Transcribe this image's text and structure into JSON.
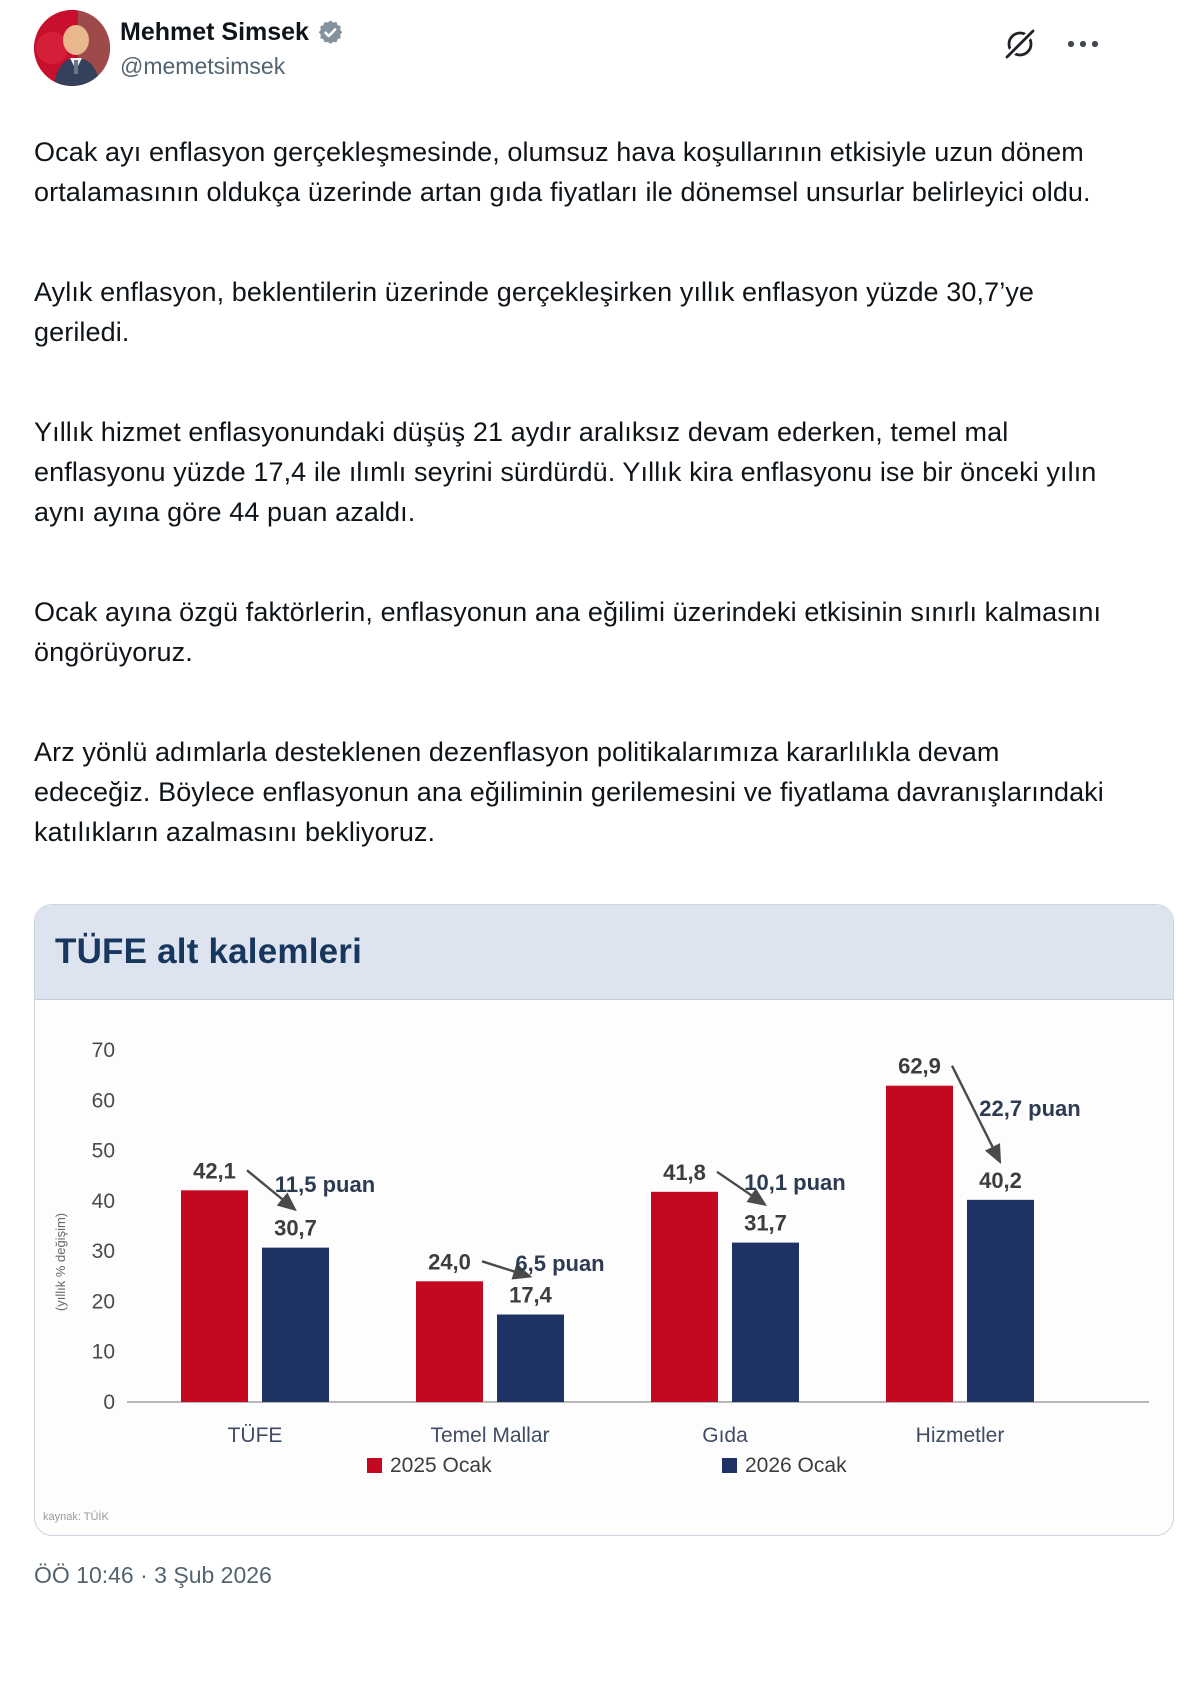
{
  "user": {
    "name": "Mehmet Simsek",
    "handle": "@memetsimsek",
    "badge": "verified-gray"
  },
  "tweet": {
    "paragraphs": [
      "Ocak ayı enflasyon gerçekleşmesinde, olumsuz hava koşullarının etkisiyle uzun dönem ortalamasının oldukça üzerinde artan gıda fiyatları ile dönemsel unsurlar belirleyici oldu.",
      "Aylık enflasyon, beklentilerin üzerinde gerçekleşirken yıllık enflasyon yüzde 30,7’ye geriledi.",
      "Yıllık hizmet enflasyonundaki düşüş 21 aydır aralıksız devam ederken, temel mal enflasyonu yüzde 17,4 ile ılımlı seyrini sürdürdü. Yıllık kira enflasyonu ise bir önceki yılın aynı ayına göre 44 puan azaldı.",
      "Ocak ayına özgü faktörlerin, enflasyonun ana eğilimi üzerindeki etkisinin sınırlı kalmasını öngörüyoruz.",
      "Arz yönlü adımlarla desteklenen dezenflasyon politikalarımıza kararlılıkla devam edeceğiz. Böylece enflasyonun ana eğiliminin gerilemesini ve fiyatlama davranışlarındaki katılıkların azalmasını bekliyoruz."
    ]
  },
  "timestamp": "ÖÖ 10:46 · 3 Şub 2026",
  "chart_data": {
    "type": "bar",
    "title": "TÜFE alt kalemleri",
    "ylabel": "(yıllık % değişim)",
    "ylim": [
      0,
      70
    ],
    "yticks": [
      0,
      10,
      20,
      30,
      40,
      50,
      60,
      70
    ],
    "grid": false,
    "legend_position": "bottom",
    "categories": [
      "TÜFE",
      "Temel Mallar",
      "Gıda",
      "Hizmetler"
    ],
    "series": [
      {
        "name": "2025 Ocak",
        "color": "#c4081f",
        "values": [
          42.1,
          24.0,
          41.8,
          62.9
        ],
        "value_labels": [
          "42,1",
          "24,0",
          "41,8",
          "62,9"
        ]
      },
      {
        "name": "2026 Ocak",
        "color": "#1e3263",
        "values": [
          30.7,
          17.4,
          31.7,
          40.2
        ],
        "value_labels": [
          "30,7",
          "17,4",
          "31,7",
          "40,2"
        ]
      }
    ],
    "diff_annotations": [
      "11,5 puan",
      "6,5 puan",
      "10,1 puan",
      "22,7 puan"
    ],
    "source": "kaynak: TÜİK"
  },
  "colors": {
    "accent_red": "#c4081f",
    "accent_navy": "#1e3263",
    "title_navy": "#17375e",
    "badge_gray": "#84919e"
  }
}
